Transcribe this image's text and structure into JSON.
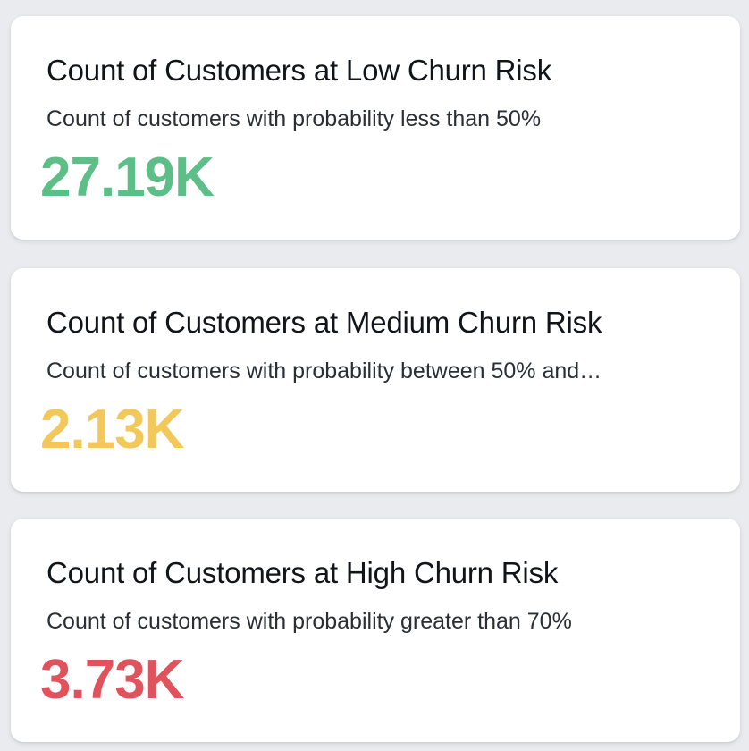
{
  "colors": {
    "low": "#5dbe87",
    "medium": "#f2c85b",
    "high": "#e0525c"
  },
  "cards": [
    {
      "title": "Count of Customers at Low Churn Risk",
      "subtitle": "Count of customers with probability less than 50%",
      "value": "27.19K"
    },
    {
      "title": "Count of Customers at Medium Churn Risk",
      "subtitle": "Count of customers with probability between 50% and…",
      "value": "2.13K"
    },
    {
      "title": "Count of Customers at High Churn Risk",
      "subtitle": "Count of customers with probability greater than 70%",
      "value": "3.73K"
    }
  ]
}
